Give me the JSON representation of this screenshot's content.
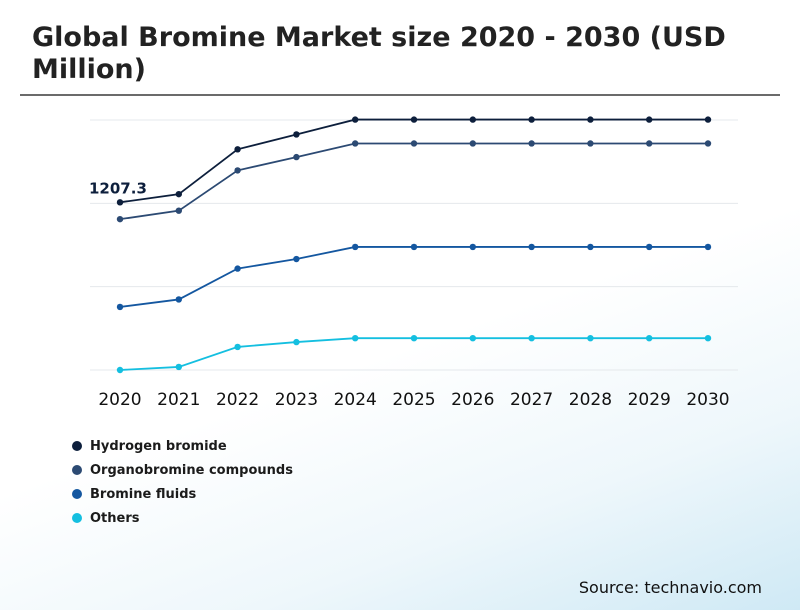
{
  "title": "Global Bromine Market size 2020 - 2030 (USD Million)",
  "source": "Source: technavio.com",
  "chart_data": {
    "type": "line",
    "title": "Global Bromine Market size 2020 - 2030 (USD Million)",
    "x": [
      "2020",
      "2021",
      "2022",
      "2023",
      "2024",
      "2025",
      "2026",
      "2027",
      "2028",
      "2029",
      "2030"
    ],
    "ylim": [
      0,
      1800
    ],
    "grid": true,
    "legend_position": "bottom-left",
    "annotations": [
      {
        "series": "Hydrogen bromide",
        "x": "2020",
        "text": "1207.3"
      }
    ],
    "series": [
      {
        "name": "Hydrogen bromide",
        "color": "#0d1f3c",
        "values": [
          1207.3,
          1266,
          1589,
          1696,
          1803,
          1803,
          1803,
          1803,
          1803,
          1803,
          1803
        ]
      },
      {
        "name": "Organobromine compounds",
        "color": "#2c4a73",
        "values": [
          1086,
          1147,
          1437,
          1533,
          1631,
          1631,
          1631,
          1631,
          1631,
          1631,
          1631
        ]
      },
      {
        "name": "Bromine fluids",
        "color": "#1457a0",
        "values": [
          454,
          508,
          730,
          799,
          886,
          886,
          886,
          886,
          886,
          886,
          886
        ]
      },
      {
        "name": "Others",
        "color": "#14bfe0",
        "values": [
          0,
          22,
          166,
          201,
          229,
          229,
          229,
          229,
          229,
          229,
          229
        ]
      }
    ]
  }
}
